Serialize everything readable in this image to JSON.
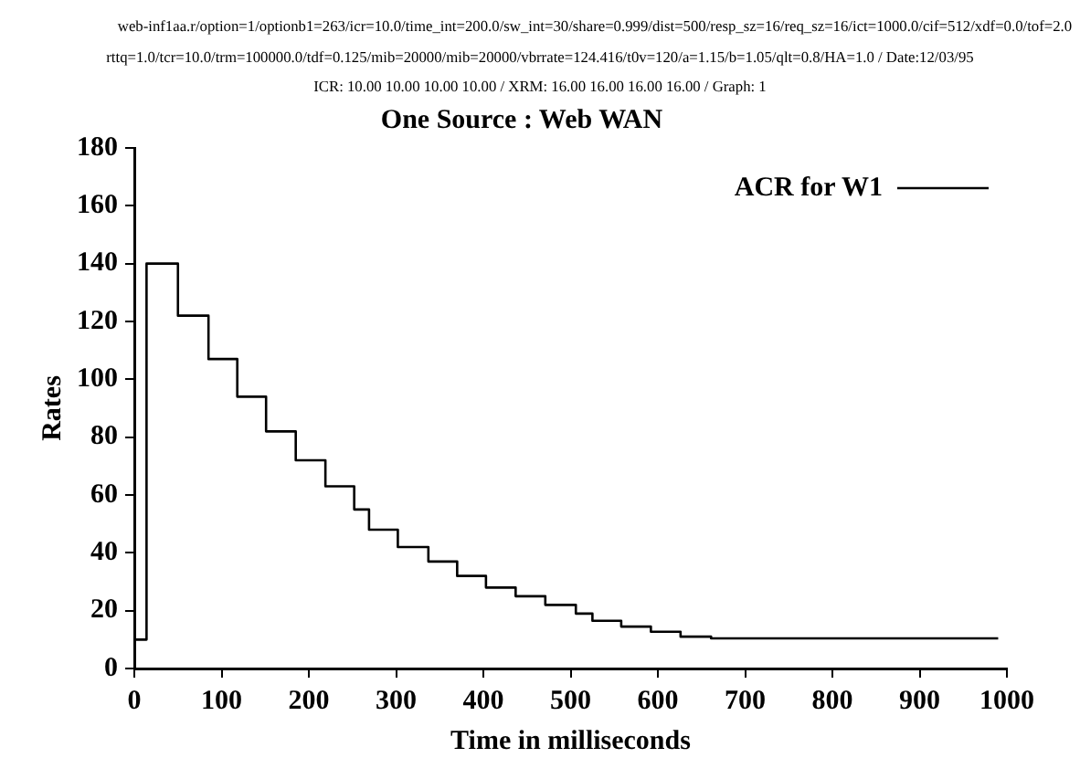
{
  "chart_data": {
    "type": "step",
    "title": "One Source : Web WAN",
    "xlabel": "Time in milliseconds",
    "ylabel": "Rates",
    "annotations": [
      "web-inf1aa.r/option=1/optionb1=263/icr=10.0/time_int=200.0/sw_int=30/share=0.999/dist=500/resp_sz=16/req_sz=16/ict=1000.0/cif=512/xdf=0.0/tof=2.0",
      "rttq=1.0/tcr=10.0/trm=100000.0/tdf=0.125/mib=20000/mib=20000/vbrrate=124.416/t0v=120/a=1.15/b=1.05/qlt=0.8/HA=1.0 / Date:12/03/95",
      "ICR: 10.00 10.00 10.00 10.00 / XRM: 16.00 16.00 16.00 16.00 / Graph: 1"
    ],
    "x": [
      0,
      14,
      50,
      85,
      118,
      151,
      185,
      219,
      252,
      269,
      302,
      337,
      370,
      403,
      437,
      471,
      506,
      525,
      558,
      592,
      626,
      661,
      990
    ],
    "series": [
      {
        "name": "ACR for W1",
        "color": "#000000",
        "values": [
          10,
          140,
          122,
          107,
          94,
          82,
          72,
          63,
          55,
          48,
          42,
          37,
          32,
          28,
          25,
          22,
          19,
          16.5,
          14.5,
          12.7,
          11,
          10.4,
          10.4
        ]
      }
    ],
    "xlim": [
      0,
      1000
    ],
    "xticks": [
      0,
      100,
      200,
      300,
      400,
      500,
      600,
      700,
      800,
      900,
      1000
    ],
    "ylim": [
      0,
      180
    ],
    "yticks": [
      0,
      20,
      40,
      60,
      80,
      100,
      120,
      140,
      160,
      180
    ],
    "legend": "top right",
    "marker": "none",
    "line_style": "solid"
  }
}
